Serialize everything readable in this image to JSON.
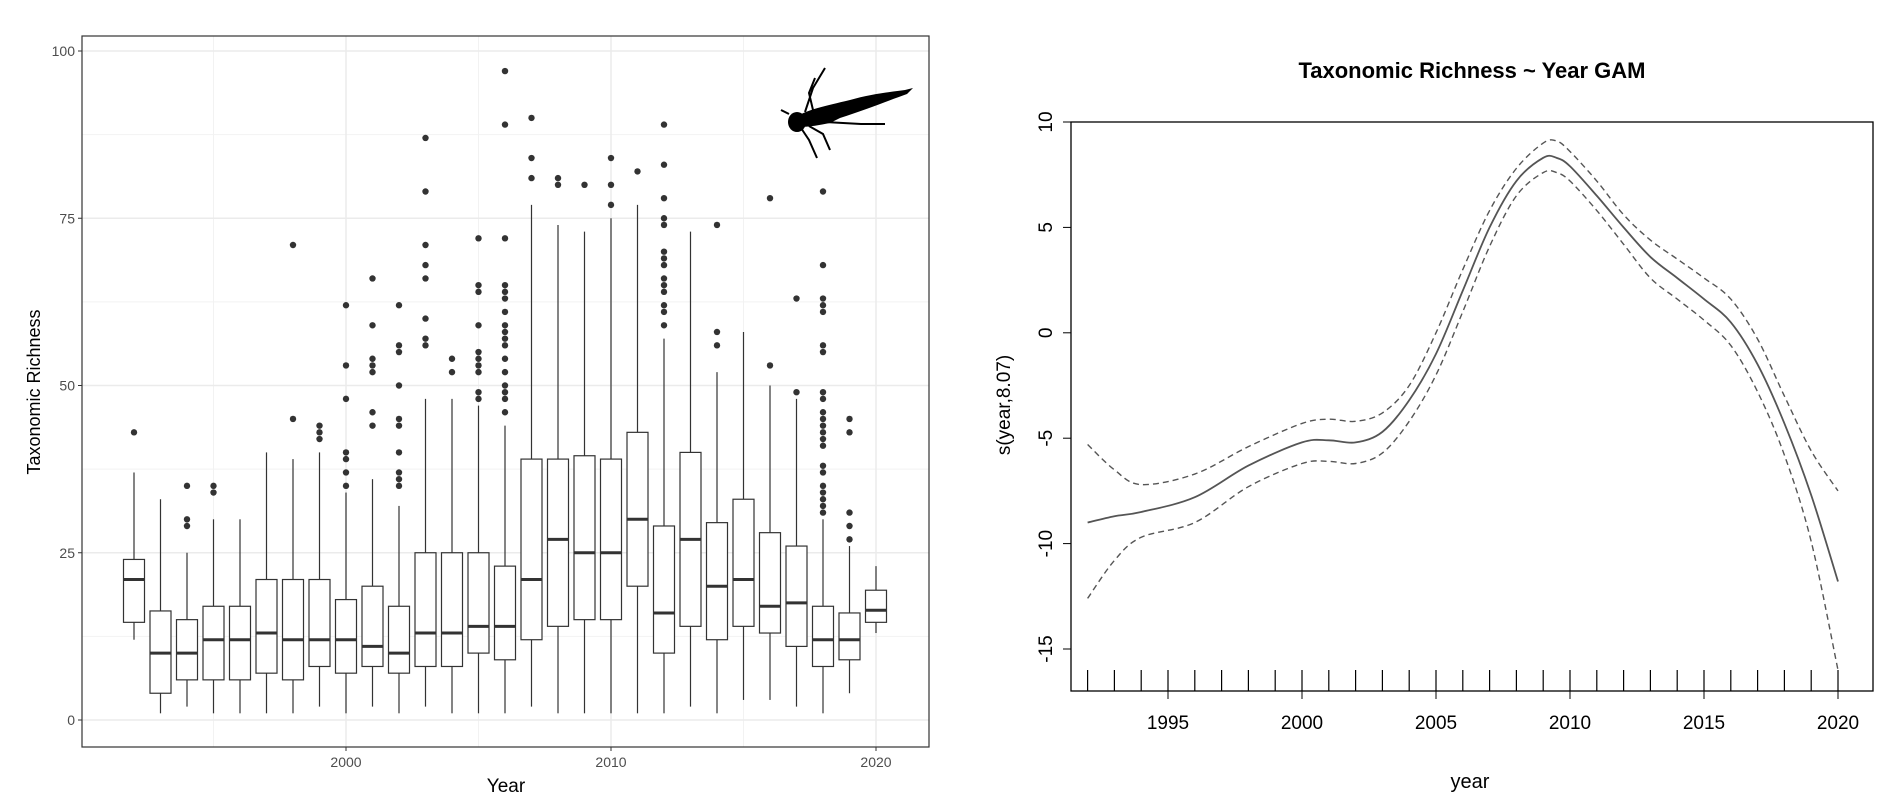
{
  "chart_data": [
    {
      "type": "boxplot",
      "title": "",
      "xlabel": "Year",
      "ylabel": "Taxonomic Richness",
      "xlim": [
        1991.1,
        2021.2
      ],
      "ylim": [
        -4,
        104
      ],
      "xticks": [
        2000,
        2010,
        2020
      ],
      "xtick_labels": [
        "2000",
        "2010",
        "2020"
      ],
      "yticks": [
        0,
        25,
        50,
        75,
        100
      ],
      "ytick_labels": [
        "0",
        "25",
        "50",
        "75",
        "100"
      ],
      "grid": true,
      "colors": {
        "box": "#333333",
        "outlier": "#333333",
        "grid": "#ebebeb",
        "frame": "#333333"
      },
      "icon": "stonefly-nymph-silhouette",
      "boxes": [
        {
          "year": 1992,
          "lo": 12,
          "q1": 14.6,
          "med": 21,
          "q3": 24,
          "hi": 37,
          "out": [
            43
          ]
        },
        {
          "year": 1993,
          "lo": 1,
          "q1": 4,
          "med": 10,
          "q3": 16.3,
          "hi": 33,
          "out": []
        },
        {
          "year": 1994,
          "lo": 2,
          "q1": 6,
          "med": 10,
          "q3": 15,
          "hi": 25,
          "out": [
            29,
            30,
            35
          ]
        },
        {
          "year": 1995,
          "lo": 1,
          "q1": 6,
          "med": 12,
          "q3": 17,
          "hi": 30,
          "out": [
            34,
            35
          ]
        },
        {
          "year": 1996,
          "lo": 1,
          "q1": 6,
          "med": 12,
          "q3": 17,
          "hi": 30,
          "out": []
        },
        {
          "year": 1997,
          "lo": 1,
          "q1": 7,
          "med": 13,
          "q3": 21,
          "hi": 40,
          "out": []
        },
        {
          "year": 1998,
          "lo": 1,
          "q1": 6,
          "med": 12,
          "q3": 21,
          "hi": 39,
          "out": [
            45,
            71
          ]
        },
        {
          "year": 1999,
          "lo": 2,
          "q1": 8,
          "med": 12,
          "q3": 21,
          "hi": 40,
          "out": [
            42,
            43,
            44
          ]
        },
        {
          "year": 2000,
          "lo": 1,
          "q1": 7,
          "med": 12,
          "q3": 18,
          "hi": 34,
          "out": [
            35,
            37,
            39,
            40,
            48,
            53,
            62
          ]
        },
        {
          "year": 2001,
          "lo": 2,
          "q1": 8,
          "med": 11,
          "q3": 20,
          "hi": 36,
          "out": [
            44,
            46,
            52,
            53,
            54,
            59,
            66
          ]
        },
        {
          "year": 2002,
          "lo": 1,
          "q1": 7,
          "med": 10,
          "q3": 17,
          "hi": 32,
          "out": [
            35,
            36,
            37,
            40,
            44,
            45,
            50,
            55,
            56,
            62
          ]
        },
        {
          "year": 2003,
          "lo": 2,
          "q1": 8,
          "med": 13,
          "q3": 25,
          "hi": 48,
          "out": [
            56,
            57,
            60,
            66,
            68,
            71,
            79,
            87
          ]
        },
        {
          "year": 2004,
          "lo": 1,
          "q1": 8,
          "med": 13,
          "q3": 25,
          "hi": 48,
          "out": [
            52,
            54
          ]
        },
        {
          "year": 2005,
          "lo": 1,
          "q1": 10,
          "med": 14,
          "q3": 25,
          "hi": 47,
          "out": [
            48,
            49,
            52,
            53,
            54,
            55,
            59,
            64,
            65,
            72
          ]
        },
        {
          "year": 2006,
          "lo": 1,
          "q1": 9,
          "med": 14,
          "q3": 23,
          "hi": 44,
          "out": [
            46,
            48,
            49,
            50,
            52,
            54,
            56,
            57,
            58,
            59,
            61,
            63,
            64,
            65,
            72,
            89,
            97
          ]
        },
        {
          "year": 2007,
          "lo": 2,
          "q1": 12,
          "med": 21,
          "q3": 39,
          "hi": 77,
          "out": [
            81,
            84,
            90
          ]
        },
        {
          "year": 2008,
          "lo": 1,
          "q1": 14,
          "med": 27,
          "q3": 39,
          "hi": 74,
          "out": [
            80,
            81
          ]
        },
        {
          "year": 2009,
          "lo": 1,
          "q1": 15,
          "med": 25,
          "q3": 39.5,
          "hi": 73,
          "out": [
            80
          ]
        },
        {
          "year": 2010,
          "lo": 1,
          "q1": 15,
          "med": 25,
          "q3": 39,
          "hi": 75,
          "out": [
            77,
            80,
            84
          ]
        },
        {
          "year": 2011,
          "lo": 1,
          "q1": 20,
          "med": 30,
          "q3": 43,
          "hi": 77,
          "out": [
            82
          ]
        },
        {
          "year": 2012,
          "lo": 1,
          "q1": 10,
          "med": 16,
          "q3": 29,
          "hi": 57,
          "out": [
            59,
            61,
            62,
            64,
            65,
            66,
            68,
            69,
            70,
            74,
            75,
            78,
            83,
            89
          ]
        },
        {
          "year": 2013,
          "lo": 2,
          "q1": 14,
          "med": 27,
          "q3": 40,
          "hi": 73,
          "out": []
        },
        {
          "year": 2014,
          "lo": 1,
          "q1": 12,
          "med": 20,
          "q3": 29.5,
          "hi": 52,
          "out": [
            56,
            58,
            74
          ]
        },
        {
          "year": 2015,
          "lo": 3,
          "q1": 14,
          "med": 21,
          "q3": 33,
          "hi": 58,
          "out": []
        },
        {
          "year": 2016,
          "lo": 3,
          "q1": 13,
          "med": 17,
          "q3": 28,
          "hi": 50,
          "out": [
            53,
            78
          ]
        },
        {
          "year": 2017,
          "lo": 2,
          "q1": 11,
          "med": 17.5,
          "q3": 26,
          "hi": 48,
          "out": [
            49,
            63
          ]
        },
        {
          "year": 2018,
          "lo": 1,
          "q1": 8,
          "med": 12,
          "q3": 17,
          "hi": 30,
          "out": [
            31,
            32,
            33,
            34,
            35,
            37,
            38,
            41,
            42,
            43,
            44,
            45,
            46,
            48,
            49,
            55,
            56,
            61,
            62,
            63,
            68,
            79
          ]
        },
        {
          "year": 2019,
          "lo": 4,
          "q1": 9,
          "med": 12,
          "q3": 16,
          "hi": 26,
          "out": [
            27,
            29,
            31,
            43,
            45
          ]
        },
        {
          "year": 2020,
          "lo": 13,
          "q1": 14.6,
          "med": 16.4,
          "q3": 19.4,
          "hi": 23,
          "out": []
        }
      ]
    },
    {
      "type": "line",
      "title": "Taxonomic Richness ~ Year GAM",
      "xlabel": "year",
      "ylabel": "s(year,8.07)",
      "xlim": [
        1990.85,
        2021.2
      ],
      "ylim": [
        -17,
        10
      ],
      "xticks": [
        1995,
        2000,
        2005,
        2010,
        2015,
        2020
      ],
      "xtick_labels": [
        "1995",
        "2000",
        "2005",
        "2010",
        "2015",
        "2020"
      ],
      "yticks": [
        10,
        5,
        0,
        -5,
        -10,
        -15
      ],
      "ytick_labels": [
        "10",
        "5",
        "0",
        "-5",
        "-10",
        "-15"
      ],
      "grid": false,
      "rug": [
        1992,
        1993,
        1994,
        1995,
        1996,
        1997,
        1998,
        1999,
        2000,
        2001,
        2002,
        2003,
        2004,
        2005,
        2006,
        2007,
        2008,
        2009,
        2010,
        2011,
        2012,
        2013,
        2014,
        2015,
        2016,
        2017,
        2018,
        2019,
        2020
      ],
      "x": [
        1992,
        1993,
        1994,
        1996,
        1998,
        2000,
        2001,
        2002,
        2003,
        2004,
        2005,
        2006,
        2007,
        2008,
        2009,
        2009.5,
        2010,
        2011,
        2012,
        2013,
        2014,
        2015,
        2016,
        2017,
        2018,
        2019,
        2020
      ],
      "series": [
        {
          "name": "fit",
          "style": "solid",
          "values": [
            -9,
            -8.7,
            -8.5,
            -7.8,
            -6.3,
            -5.2,
            -5.1,
            -5.2,
            -4.7,
            -3.2,
            -1,
            2,
            5,
            7.2,
            8.3,
            8.3,
            7.9,
            6.5,
            5,
            3.6,
            2.6,
            1.6,
            0.5,
            -1.5,
            -4.3,
            -7.7,
            -11.8
          ]
        },
        {
          "name": "upper",
          "style": "dashed",
          "values": [
            -5.3,
            -6.5,
            -7.2,
            -6.7,
            -5.4,
            -4.3,
            -4.1,
            -4.2,
            -3.8,
            -2.5,
            0,
            3,
            5.8,
            7.8,
            9,
            9.1,
            8.6,
            7.2,
            5.6,
            4.4,
            3.5,
            2.6,
            1.6,
            -0.3,
            -3,
            -5.6,
            -7.5
          ]
        },
        {
          "name": "lower",
          "style": "dashed",
          "values": [
            -12.6,
            -10.8,
            -9.7,
            -9,
            -7.3,
            -6.2,
            -6.1,
            -6.2,
            -5.7,
            -4.2,
            -2,
            1,
            4.1,
            6.5,
            7.6,
            7.6,
            7.2,
            5.8,
            4.2,
            2.6,
            1.6,
            0.6,
            -0.6,
            -2.8,
            -5.8,
            -9.9,
            -16
          ]
        }
      ],
      "colors": {
        "fit": "#555555",
        "band": "#555555",
        "frame": "#000000"
      }
    }
  ]
}
